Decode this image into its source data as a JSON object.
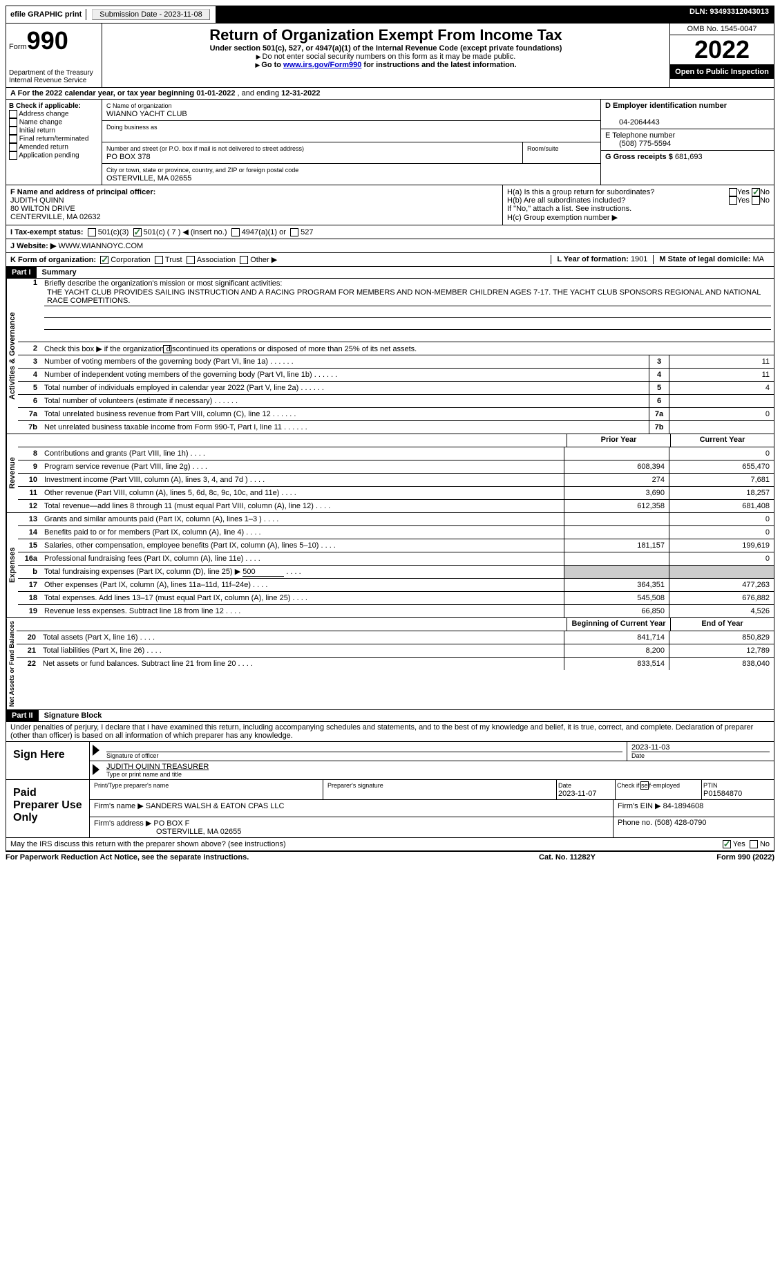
{
  "topbar": {
    "efile": "efile GRAPHIC print",
    "submission_label": "Submission Date - ",
    "submission_date": "2023-11-08",
    "dln_label": "DLN: ",
    "dln": "93493312043013"
  },
  "header": {
    "form_label": "Form",
    "form_no": "990",
    "title": "Return of Organization Exempt From Income Tax",
    "subtitle": "Under section 501(c), 527, or 4947(a)(1) of the Internal Revenue Code (except private foundations)",
    "note1": "Do not enter social security numbers on this form as it may be made public.",
    "note2_pre": "Go to ",
    "note2_link": "www.irs.gov/Form990",
    "note2_post": " for instructions and the latest information.",
    "dept": "Department of the Treasury",
    "irs": "Internal Revenue Service",
    "omb": "OMB No. 1545-0047",
    "year": "2022",
    "otp": "Open to Public Inspection"
  },
  "row_a": {
    "label_pre": "A For the 2022 calendar year, or tax year beginning ",
    "begin": "01-01-2022",
    "mid": "  , and ending ",
    "end": "12-31-2022"
  },
  "col_b": {
    "header": "B Check if applicable:",
    "items": [
      "Address change",
      "Name change",
      "Initial return",
      "Final return/terminated",
      "Amended return",
      "Application pending"
    ]
  },
  "col_c": {
    "name_label": "C Name of organization",
    "name": "WIANNO YACHT CLUB",
    "dba_label": "Doing business as",
    "street_label": "Number and street (or P.O. box if mail is not delivered to street address)",
    "room_label": "Room/suite",
    "street": "PO BOX 378",
    "city_label": "City or town, state or province, country, and ZIP or foreign postal code",
    "city": "OSTERVILLE, MA  02655"
  },
  "col_d": {
    "ein_label": "D Employer identification number",
    "ein": "04-2064443",
    "phone_label": "E Telephone number",
    "phone": "(508) 775-5594",
    "gross_label": "G Gross receipts $ ",
    "gross": "681,693"
  },
  "f": {
    "label": "F Name and address of principal officer:",
    "name": "JUDITH QUINN",
    "street": "80 WILTON DRIVE",
    "city": "CENTERVILLE, MA  02632"
  },
  "h": {
    "a_label": "H(a)  Is this a group return for subordinates?",
    "b_label": "H(b)  Are all subordinates included?",
    "b_note": "If \"No,\" attach a list. See instructions.",
    "c_label": "H(c)  Group exemption number ▶",
    "yes": "Yes",
    "no": "No"
  },
  "i": {
    "label": "I     Tax-exempt status:",
    "o1": "501(c)(3)",
    "o2": "501(c) ( 7 ) ◀ (insert no.)",
    "o3": "4947(a)(1) or",
    "o4": "527"
  },
  "j": {
    "label": "J    Website: ▶ ",
    "site": "WWW.WIANNOYC.COM"
  },
  "k": {
    "label": "K Form of organization:",
    "o1": "Corporation",
    "o2": "Trust",
    "o3": "Association",
    "o4": "Other ▶"
  },
  "l": {
    "label": "L Year of formation: ",
    "val": "1901"
  },
  "m": {
    "label": "M State of legal domicile: ",
    "val": "MA"
  },
  "parts": {
    "p1_hdr": "Part I",
    "p1_title": "Summary",
    "p2_hdr": "Part II",
    "p2_title": "Signature Block"
  },
  "summary": {
    "q1": "Briefly describe the organization's mission or most significant activities:",
    "mission": "THE YACHT CLUB PROVIDES SAILING INSTRUCTION AND A RACING PROGRAM FOR MEMBERS AND NON-MEMBER CHILDREN AGES 7-17. THE YACHT CLUB SPONSORS REGIONAL AND NATIONAL RACE COMPETITIONS.",
    "q2": "Check this box ▶       if the organization discontinued its operations or disposed of more than 25% of its net assets.",
    "vlabels": {
      "ag": "Activities & Governance",
      "rev": "Revenue",
      "exp": "Expenses",
      "na": "Net Assets or Fund Balances"
    },
    "col_hdr_prior": "Prior Year",
    "col_hdr_current": "Current Year",
    "col_hdr_begin": "Beginning of Current Year",
    "col_hdr_end": "End of Year",
    "lines_single": [
      {
        "n": "3",
        "t": "Number of voting members of the governing body (Part VI, line 1a)",
        "v": "11"
      },
      {
        "n": "4",
        "t": "Number of independent voting members of the governing body (Part VI, line 1b)",
        "v": "11"
      },
      {
        "n": "5",
        "t": "Total number of individuals employed in calendar year 2022 (Part V, line 2a)",
        "v": "4"
      },
      {
        "n": "6",
        "t": "Total number of volunteers (estimate if necessary)",
        "v": ""
      },
      {
        "n": "7a",
        "t": "Total unrelated business revenue from Part VIII, column (C), line 12",
        "v": "0"
      },
      {
        "n": "7b",
        "t": "Net unrelated business taxable income from Form 990-T, Part I, line 11",
        "v": ""
      }
    ],
    "lines_rev": [
      {
        "n": "8",
        "t": "Contributions and grants (Part VIII, line 1h)",
        "p": "",
        "c": "0"
      },
      {
        "n": "9",
        "t": "Program service revenue (Part VIII, line 2g)",
        "p": "608,394",
        "c": "655,470"
      },
      {
        "n": "10",
        "t": "Investment income (Part VIII, column (A), lines 3, 4, and 7d )",
        "p": "274",
        "c": "7,681"
      },
      {
        "n": "11",
        "t": "Other revenue (Part VIII, column (A), lines 5, 6d, 8c, 9c, 10c, and 11e)",
        "p": "3,690",
        "c": "18,257"
      },
      {
        "n": "12",
        "t": "Total revenue—add lines 8 through 11 (must equal Part VIII, column (A), line 12)",
        "p": "612,358",
        "c": "681,408"
      }
    ],
    "lines_exp": [
      {
        "n": "13",
        "t": "Grants and similar amounts paid (Part IX, column (A), lines 1–3 )",
        "p": "",
        "c": "0"
      },
      {
        "n": "14",
        "t": "Benefits paid to or for members (Part IX, column (A), line 4)",
        "p": "",
        "c": "0"
      },
      {
        "n": "15",
        "t": "Salaries, other compensation, employee benefits (Part IX, column (A), lines 5–10)",
        "p": "181,157",
        "c": "199,619"
      },
      {
        "n": "16a",
        "t": "Professional fundraising fees (Part IX, column (A), line 11e)",
        "p": "",
        "c": "0"
      },
      {
        "n": "b",
        "t": "Total fundraising expenses (Part IX, column (D), line 25) ▶",
        "p": "shade",
        "c": "shade",
        "inset": "500"
      },
      {
        "n": "17",
        "t": "Other expenses (Part IX, column (A), lines 11a–11d, 11f–24e)",
        "p": "364,351",
        "c": "477,263"
      },
      {
        "n": "18",
        "t": "Total expenses. Add lines 13–17 (must equal Part IX, column (A), line 25)",
        "p": "545,508",
        "c": "676,882"
      },
      {
        "n": "19",
        "t": "Revenue less expenses. Subtract line 18 from line 12",
        "p": "66,850",
        "c": "4,526"
      }
    ],
    "lines_na": [
      {
        "n": "20",
        "t": "Total assets (Part X, line 16)",
        "p": "841,714",
        "c": "850,829"
      },
      {
        "n": "21",
        "t": "Total liabilities (Part X, line 26)",
        "p": "8,200",
        "c": "12,789"
      },
      {
        "n": "22",
        "t": "Net assets or fund balances. Subtract line 21 from line 20",
        "p": "833,514",
        "c": "838,040"
      }
    ]
  },
  "sig": {
    "penalties": "Under penalties of perjury, I declare that I have examined this return, including accompanying schedules and statements, and to the best of my knowledge and belief, it is true, correct, and complete. Declaration of preparer (other than officer) is based on all information of which preparer has any knowledge.",
    "sign_here": "Sign Here",
    "sig_officer": "Signature of officer",
    "date": "Date",
    "sig_date": "2023-11-03",
    "officer_name": "JUDITH QUINN  TREASURER",
    "type_name": "Type or print name and title",
    "paid": "Paid Preparer Use Only",
    "prep_name_lbl": "Print/Type preparer's name",
    "prep_sig_lbl": "Preparer's signature",
    "prep_date_lbl": "Date",
    "prep_date": "2023-11-07",
    "self_emp": "Check        if self-employed",
    "ptin_lbl": "PTIN",
    "ptin": "P01584870",
    "firm_name_lbl": "Firm's name     ▶ ",
    "firm_name": "SANDERS WALSH & EATON CPAS LLC",
    "firm_ein_lbl": "Firm's EIN ▶ ",
    "firm_ein": "84-1894608",
    "firm_addr_lbl": "Firm's address ▶ ",
    "firm_addr": "PO BOX F",
    "firm_city": "OSTERVILLE, MA  02655",
    "firm_phone_lbl": "Phone no. ",
    "firm_phone": "(508) 428-0790",
    "may_irs": "May the IRS discuss this return with the preparer shown above? (see instructions)"
  },
  "footer": {
    "left": "For Paperwork Reduction Act Notice, see the separate instructions.",
    "mid": "Cat. No. 11282Y",
    "right": "Form 990 (2022)"
  }
}
